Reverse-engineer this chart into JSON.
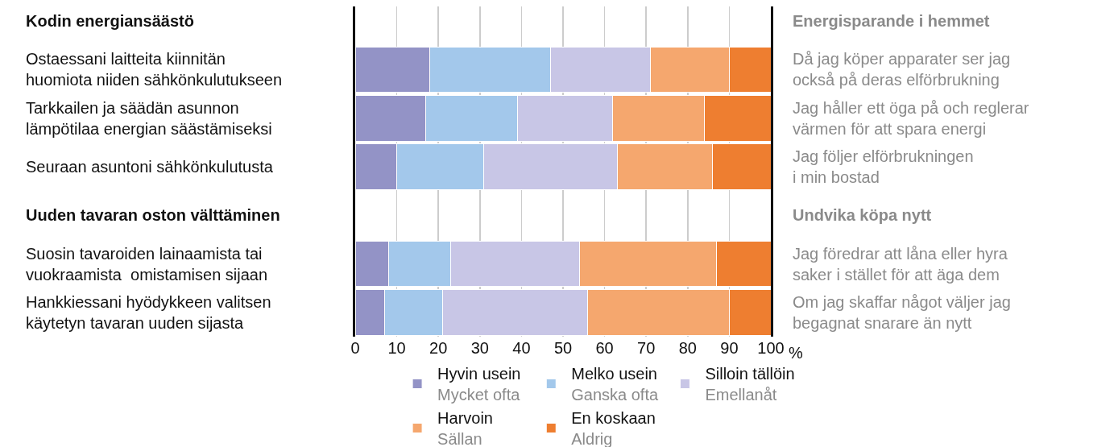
{
  "chart_data": {
    "type": "bar",
    "orientation": "horizontal",
    "stacked": true,
    "categories": [
      "Kodin energiansäästö",
      "Ostaessani laitteita kiinnitän\nhuomiota niiden sähkönkulutukseen",
      "Tarkkailen ja säädän asunnon\nlämpötilaa energian säästämiseksi",
      "Seuraan asuntoni sähkönkulutusta",
      "Uuden tavaran oston välttäminen",
      "Suosin tavaroiden lainaamista tai\nvuokraamista  omistamisen sijaan",
      "Hankkiessani hyödykkeen valitsen\nkäytetyn tavaran uuden sijasta"
    ],
    "series": [
      {
        "name": "Hyvin usein\nMycket ofta",
        "color": "#9393c6",
        "values": [
          null,
          18,
          17,
          10,
          null,
          8,
          7
        ]
      },
      {
        "name": "Melko usein\nGanska ofta",
        "color": "#a3c8eb",
        "values": [
          null,
          29,
          22,
          21,
          null,
          15,
          14
        ]
      },
      {
        "name": "Silloin tällöin\nEmellanåt",
        "color": "#c8c6e6",
        "values": [
          null,
          24,
          23,
          32,
          null,
          31,
          35
        ]
      },
      {
        "name": "Harvoin\nSällan",
        "color": "#f5a76e",
        "values": [
          null,
          19,
          22,
          23,
          null,
          33,
          34
        ]
      },
      {
        "name": "En koskaan\nAldrig",
        "color": "#ee7e30",
        "values": [
          null,
          10,
          16,
          14,
          null,
          13,
          10
        ]
      }
    ],
    "xlabel": "%",
    "xlim": [
      0,
      100
    ],
    "xticks": [
      0,
      10,
      20,
      30,
      40,
      50,
      60,
      70,
      80,
      90,
      100
    ],
    "grid": "x",
    "legend": "bottom",
    "annotations": [
      "Energisparande i hemmet",
      "Då jag köper apparater ser jag\nockså på deras elförbrukning",
      "Jag håller ett öga på och reglerar\nvärmen för att spara energi",
      "Jag följer elförbrukningen\ni min bostad",
      "Undvika köpa nytt",
      "Jag föredrar att låna eller hyra\nsaker i stället för att äga dem",
      "Om jag skaffar något väljer jag\nbegagnat snarare än nytt"
    ]
  }
}
